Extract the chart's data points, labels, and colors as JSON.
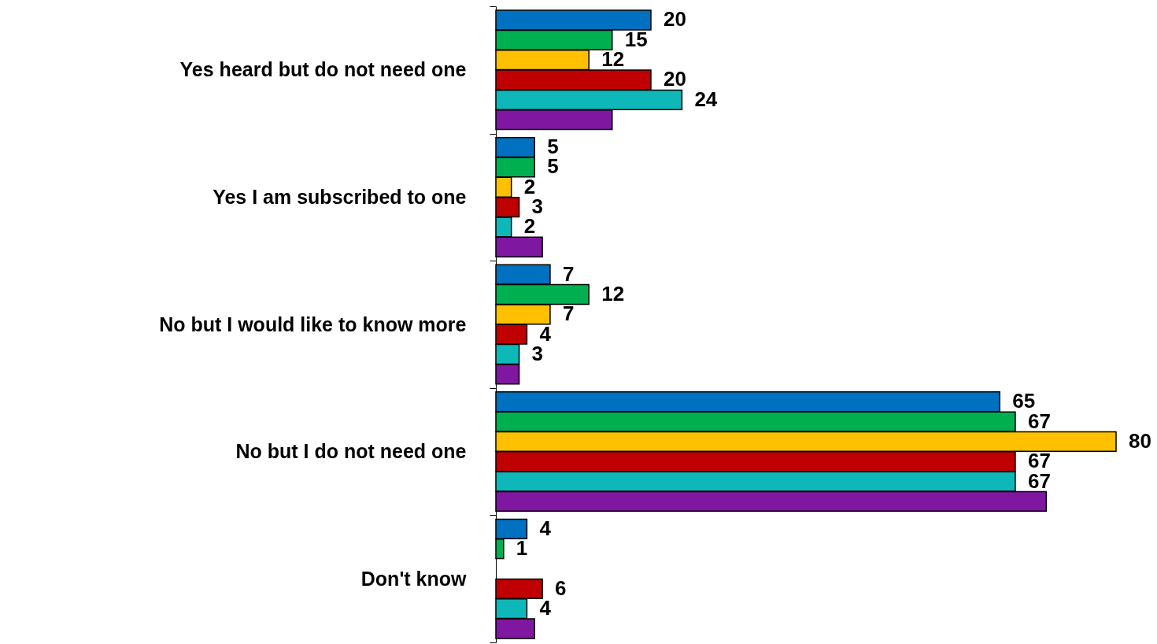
{
  "chart_data": {
    "type": "bar",
    "orientation": "horizontal",
    "categories": [
      "Yes heard but do not need one",
      "Yes I am subscribed to one",
      "No but I would like to know more",
      "No but I do not need one",
      "Don't know"
    ],
    "series": [
      {
        "color": "#0070c0",
        "values": [
          20,
          5,
          7,
          65,
          4
        ],
        "value_labels": [
          "20",
          "5",
          "7",
          "65",
          "4"
        ]
      },
      {
        "color": "#00b050",
        "values": [
          15,
          5,
          12,
          67,
          1
        ],
        "value_labels": [
          "15",
          "5",
          "12",
          "67",
          "1"
        ]
      },
      {
        "color": "#ffc000",
        "values": [
          12,
          2,
          7,
          80,
          null
        ],
        "value_labels": [
          "12",
          "2",
          "7",
          "80",
          null
        ]
      },
      {
        "color": "#c00000",
        "values": [
          20,
          3,
          4,
          67,
          6
        ],
        "value_labels": [
          "20",
          "3",
          "4",
          "67",
          "6"
        ]
      },
      {
        "color": "#0fb8b8",
        "values": [
          24,
          2,
          3,
          67,
          4
        ],
        "value_labels": [
          "24",
          "2",
          "3",
          "67",
          "4"
        ]
      },
      {
        "color": "#7f17a0",
        "values": [
          15,
          6,
          3,
          71,
          5
        ]
      }
    ]
  }
}
